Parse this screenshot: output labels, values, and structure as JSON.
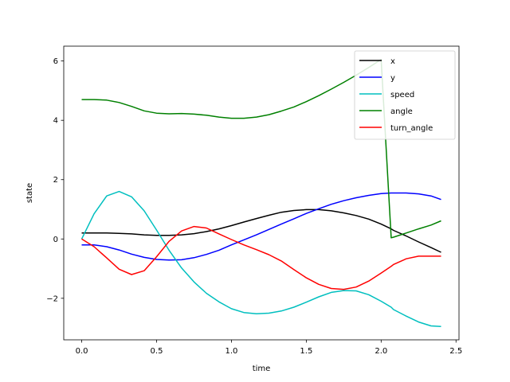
{
  "chart_data": {
    "type": "line",
    "title": "",
    "xlabel": "time",
    "ylabel": "state",
    "xlim": [
      -0.12,
      2.52
    ],
    "ylim": [
      -3.4,
      6.5
    ],
    "xticks": [
      0.0,
      0.5,
      1.0,
      1.5,
      2.0,
      2.5
    ],
    "xtick_labels": [
      "0.0",
      "0.5",
      "1.0",
      "1.5",
      "2.0",
      "2.5"
    ],
    "yticks": [
      -2,
      0,
      2,
      4,
      6
    ],
    "ytick_labels": [
      "−2",
      "0",
      "2",
      "4",
      "6"
    ],
    "grid": false,
    "legend_position": "top-right",
    "x": [
      0.0,
      0.083,
      0.167,
      0.25,
      0.333,
      0.417,
      0.5,
      0.583,
      0.667,
      0.75,
      0.833,
      0.917,
      1.0,
      1.083,
      1.167,
      1.25,
      1.333,
      1.417,
      1.5,
      1.583,
      1.667,
      1.75,
      1.833,
      1.917,
      2.0,
      2.067,
      2.083,
      2.167,
      2.25,
      2.333,
      2.4
    ],
    "series": [
      {
        "name": "x",
        "color": "#000000",
        "values": [
          0.2,
          0.2,
          0.2,
          0.19,
          0.17,
          0.14,
          0.12,
          0.12,
          0.14,
          0.18,
          0.25,
          0.34,
          0.45,
          0.57,
          0.69,
          0.8,
          0.9,
          0.96,
          0.99,
          0.99,
          0.95,
          0.88,
          0.79,
          0.67,
          0.5,
          0.34,
          0.29,
          0.1,
          -0.1,
          -0.29,
          -0.45
        ]
      },
      {
        "name": "y",
        "color": "#0000ff",
        "values": [
          -0.2,
          -0.2,
          -0.26,
          -0.37,
          -0.51,
          -0.62,
          -0.69,
          -0.71,
          -0.7,
          -0.63,
          -0.52,
          -0.38,
          -0.2,
          -0.03,
          0.14,
          0.32,
          0.5,
          0.68,
          0.86,
          1.02,
          1.17,
          1.29,
          1.39,
          1.47,
          1.53,
          1.55,
          1.55,
          1.55,
          1.52,
          1.45,
          1.33
        ]
      },
      {
        "name": "speed",
        "color": "#00bfbf",
        "values": [
          0.0,
          0.85,
          1.45,
          1.6,
          1.42,
          0.95,
          0.3,
          -0.38,
          -0.98,
          -1.45,
          -1.83,
          -2.12,
          -2.35,
          -2.48,
          -2.52,
          -2.5,
          -2.43,
          -2.3,
          -2.13,
          -1.95,
          -1.8,
          -1.74,
          -1.75,
          -1.88,
          -2.1,
          -2.3,
          -2.38,
          -2.6,
          -2.8,
          -2.93,
          -2.95
        ]
      },
      {
        "name": "angle",
        "color": "#008000",
        "values": [
          4.7,
          4.7,
          4.68,
          4.6,
          4.47,
          4.32,
          4.24,
          4.22,
          4.23,
          4.21,
          4.17,
          4.11,
          4.07,
          4.07,
          4.11,
          4.19,
          4.31,
          4.45,
          4.63,
          4.83,
          5.05,
          5.28,
          5.52,
          5.78,
          6.05,
          0.04,
          0.06,
          0.2,
          0.34,
          0.47,
          0.61
        ]
      },
      {
        "name": "turn_angle",
        "color": "#ff0000",
        "values": [
          0.0,
          -0.26,
          -0.64,
          -1.02,
          -1.2,
          -1.07,
          -0.6,
          -0.08,
          0.27,
          0.42,
          0.37,
          0.17,
          -0.02,
          -0.2,
          -0.36,
          -0.53,
          -0.74,
          -1.03,
          -1.31,
          -1.53,
          -1.67,
          -1.7,
          -1.62,
          -1.42,
          -1.15,
          -0.92,
          -0.86,
          -0.67,
          -0.58,
          -0.58,
          -0.58
        ]
      }
    ]
  }
}
